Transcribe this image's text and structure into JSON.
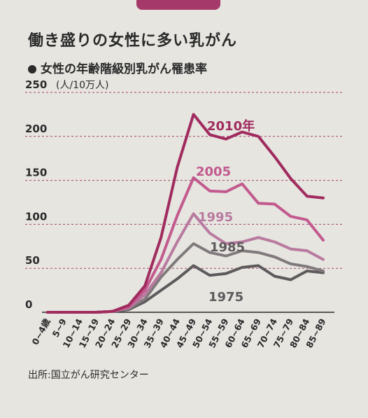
{
  "title": "働き盛りの女性に多い乳がん",
  "subtitle": "女性の年齢階級別乳がん罹患率",
  "source": "出所:国立がん研究センター",
  "chart_data": {
    "type": "line",
    "y_unit": "(人/10万人)",
    "ylim": [
      0,
      250
    ],
    "yticks": [
      0,
      50,
      100,
      150,
      200,
      250
    ],
    "categories": [
      "0~4歳",
      "5~9",
      "10~14",
      "15~19",
      "20~24",
      "25~29",
      "30~34",
      "35~39",
      "40~44",
      "45~49",
      "50~54",
      "55~59",
      "60~64",
      "65~69",
      "70~74",
      "75~79",
      "80~84",
      "85~89"
    ],
    "series": [
      {
        "name": "2010年",
        "color": "#a02b5e",
        "width": 4,
        "values": [
          0,
          0,
          0,
          0,
          1,
          8,
          30,
          85,
          165,
          225,
          202,
          197,
          205,
          200,
          177,
          152,
          132,
          130
        ]
      },
      {
        "name": "2005",
        "color": "#c25a8e",
        "width": 4,
        "values": [
          0,
          0,
          0,
          0,
          1,
          6,
          25,
          60,
          110,
          153,
          138,
          137,
          146,
          124,
          123,
          109,
          105,
          82
        ]
      },
      {
        "name": "1995",
        "color": "#b97aa0",
        "width": 4,
        "values": [
          0,
          0,
          0,
          0,
          1,
          5,
          20,
          45,
          80,
          112,
          90,
          78,
          80,
          85,
          80,
          72,
          70,
          60
        ]
      },
      {
        "name": "1985",
        "color": "#807a7c",
        "width": 4,
        "values": [
          0,
          0,
          0,
          0,
          1,
          4,
          15,
          40,
          60,
          78,
          68,
          64,
          70,
          68,
          63,
          55,
          52,
          47
        ]
      },
      {
        "name": "1975",
        "color": "#5e5a5c",
        "width": 4,
        "values": [
          0,
          0,
          0,
          0,
          1,
          3,
          12,
          25,
          38,
          53,
          42,
          44,
          51,
          53,
          41,
          37,
          47,
          45
        ]
      }
    ],
    "grid": true
  }
}
